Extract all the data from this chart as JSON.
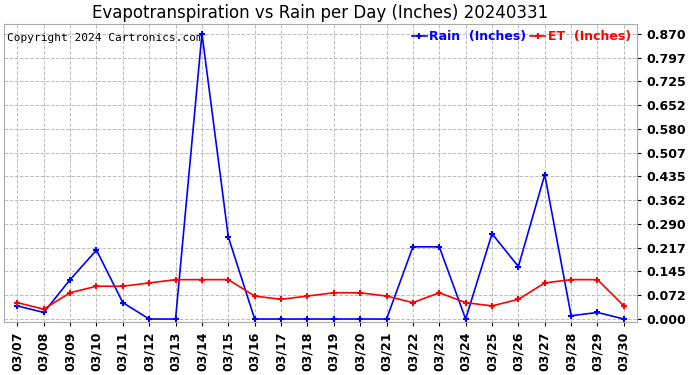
{
  "title": "Evapotranspiration vs Rain per Day (Inches) 20240331",
  "copyright": "Copyright 2024 Cartronics.com",
  "legend_rain": "Rain  (Inches)",
  "legend_et": "ET  (Inches)",
  "dates": [
    "03/07",
    "03/08",
    "03/09",
    "03/10",
    "03/11",
    "03/12",
    "03/13",
    "03/14",
    "03/15",
    "03/16",
    "03/17",
    "03/18",
    "03/19",
    "03/20",
    "03/21",
    "03/22",
    "03/23",
    "03/24",
    "03/25",
    "03/26",
    "03/27",
    "03/28",
    "03/29",
    "03/30"
  ],
  "rain": [
    0.04,
    0.02,
    0.12,
    0.21,
    0.05,
    0.0,
    0.0,
    0.87,
    0.25,
    0.0,
    0.0,
    0.0,
    0.0,
    0.0,
    0.0,
    0.22,
    0.22,
    0.0,
    0.26,
    0.16,
    0.44,
    0.01,
    0.02,
    0.0
  ],
  "et": [
    0.05,
    0.03,
    0.08,
    0.1,
    0.1,
    0.11,
    0.12,
    0.12,
    0.12,
    0.07,
    0.06,
    0.07,
    0.08,
    0.08,
    0.07,
    0.05,
    0.08,
    0.05,
    0.04,
    0.06,
    0.11,
    0.12,
    0.12,
    0.04
  ],
  "rain_color": "#0000ff",
  "et_color": "#ff0000",
  "bg_color": "#ffffff",
  "grid_color": "#bbbbbb",
  "yticks": [
    0.0,
    0.072,
    0.145,
    0.217,
    0.29,
    0.362,
    0.435,
    0.507,
    0.58,
    0.652,
    0.725,
    0.797,
    0.87
  ],
  "ylim": [
    -0.01,
    0.9
  ],
  "title_fontsize": 12,
  "tick_fontsize": 9,
  "legend_fontsize": 9,
  "copyright_fontsize": 8
}
